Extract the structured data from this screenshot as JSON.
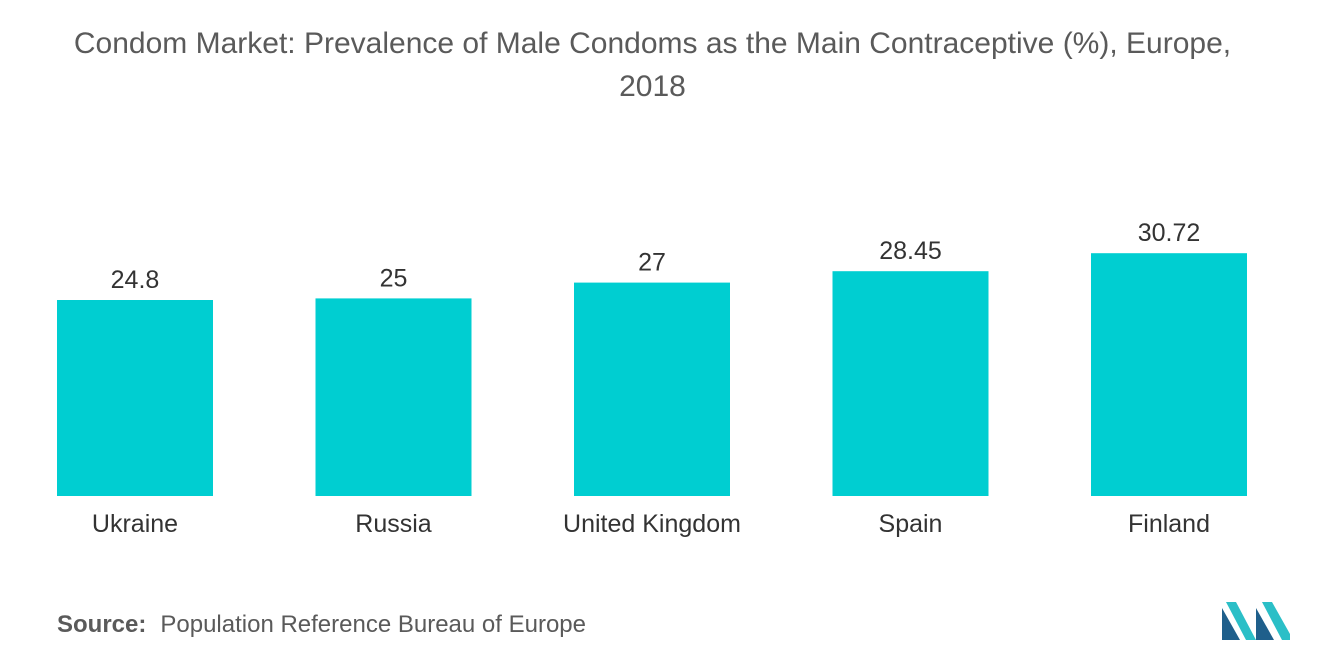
{
  "title_line1": "Condom Market: Prevalence of Male Condoms as the Main Contraceptive (%), Europe,",
  "title_line2": "2018",
  "source_key": "Source:",
  "source_text": "Population Reference Bureau of Europe",
  "logo_icon": "mordor-intelligence-logo-icon",
  "colors": {
    "bar": "#00CED1",
    "logo_dark": "#1f5f8b",
    "logo_teal": "#2bbfc7"
  },
  "chart_data": {
    "type": "bar",
    "title": "Condom Market: Prevalence of Male Condoms as the Main Contraceptive (%), Europe, 2018",
    "xlabel": "",
    "ylabel": "",
    "categories": [
      "Ukraine",
      "Russia",
      "United Kingdom",
      "Spain",
      "Finland"
    ],
    "values": [
      24.8,
      25,
      27,
      28.45,
      30.72
    ],
    "value_labels": [
      "24.8",
      "25",
      "27",
      "28.45",
      "30.72"
    ],
    "grid": false,
    "legend": "none"
  }
}
